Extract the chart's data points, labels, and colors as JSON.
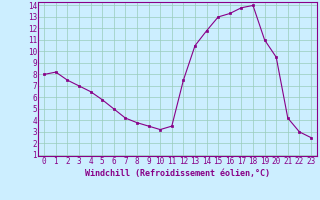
{
  "hours": [
    0,
    1,
    2,
    3,
    4,
    5,
    6,
    7,
    8,
    9,
    10,
    11,
    12,
    13,
    14,
    15,
    16,
    17,
    18,
    19,
    20,
    21,
    22,
    23
  ],
  "y_values": [
    8.0,
    8.2,
    7.5,
    7.0,
    6.5,
    5.8,
    5.0,
    4.2,
    3.8,
    3.5,
    3.2,
    3.5,
    7.5,
    10.5,
    11.8,
    13.0,
    13.3,
    13.8,
    14.0,
    11.0,
    9.5,
    4.2,
    3.0,
    2.5
  ],
  "line_color": "#880088",
  "marker_color": "#880088",
  "bg_color": "#cceeff",
  "grid_color": "#99ccbb",
  "xlabel": "Windchill (Refroidissement éolien,°C)",
  "xlabel_color": "#880088",
  "ylim": [
    1,
    14
  ],
  "xlim": [
    -0.5,
    23.5
  ],
  "yticks": [
    1,
    2,
    3,
    4,
    5,
    6,
    7,
    8,
    9,
    10,
    11,
    12,
    13,
    14
  ],
  "xticks": [
    0,
    1,
    2,
    3,
    4,
    5,
    6,
    7,
    8,
    9,
    10,
    11,
    12,
    13,
    14,
    15,
    16,
    17,
    18,
    19,
    20,
    21,
    22,
    23
  ],
  "tick_fontsize": 5.5,
  "xlabel_fontsize": 6.0
}
